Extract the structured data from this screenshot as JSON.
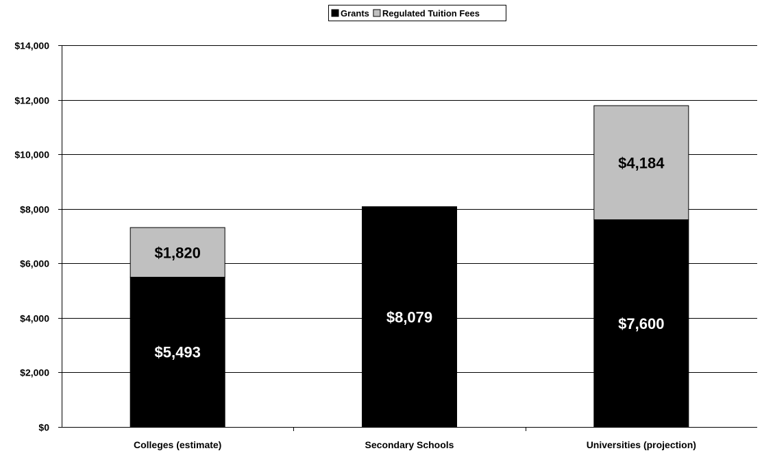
{
  "chart_data": {
    "type": "bar",
    "stacked": true,
    "categories": [
      "Colleges (estimate)",
      "Secondary Schools",
      "Universities (projection)"
    ],
    "series": [
      {
        "name": "Grants",
        "color": "#000000",
        "values": [
          5493,
          8079,
          7600
        ],
        "labels": [
          "$5,493",
          "$8,079",
          "$7,600"
        ],
        "label_color": "#ffffff"
      },
      {
        "name": "Regulated Tuition Fees",
        "color": "#c0c0c0",
        "values": [
          1820,
          0,
          4184
        ],
        "labels": [
          "$1,820",
          "",
          "$4,184"
        ],
        "label_color": "#000000"
      }
    ],
    "ylim": [
      0,
      14000
    ],
    "yticks": [
      0,
      2000,
      4000,
      6000,
      8000,
      10000,
      12000,
      14000
    ],
    "ytick_labels": [
      "$0",
      "$2,000",
      "$4,000",
      "$6,000",
      "$8,000",
      "$10,000",
      "$12,000",
      "$14,000"
    ],
    "grid": true,
    "legend_position": "top-center",
    "title": "",
    "xlabel": "",
    "ylabel": ""
  }
}
